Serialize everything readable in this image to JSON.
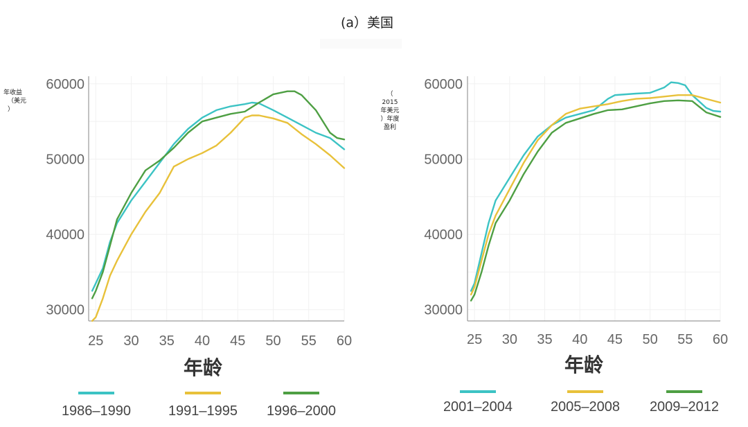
{
  "title": "(a）美国",
  "colors": {
    "cyan": "#3cc3c4",
    "yellow": "#e8c13a",
    "green": "#4e9f43"
  },
  "chart_data": [
    {
      "type": "line",
      "xlabel": "年龄",
      "ylabel_lines": [
        "年收益",
        "（美元",
        "）"
      ],
      "xlim": [
        24,
        60
      ],
      "ylim": [
        28500,
        61000
      ],
      "xticks": [
        25,
        30,
        35,
        40,
        45,
        50,
        55,
        60
      ],
      "yticks": [
        30000,
        40000,
        50000,
        60000
      ],
      "series": [
        {
          "name": "1986–1990",
          "color": "#3cc3c4",
          "x": [
            24.5,
            25,
            26,
            27,
            28,
            30,
            32,
            34,
            36,
            38,
            40,
            42,
            44,
            46,
            47,
            48,
            50,
            52,
            54,
            56,
            58,
            60
          ],
          "y": [
            32500,
            33500,
            35500,
            39000,
            41500,
            44500,
            47000,
            49500,
            52000,
            54000,
            55500,
            56500,
            57000,
            57300,
            57500,
            57400,
            56500,
            55500,
            54500,
            53500,
            52800,
            51300
          ]
        },
        {
          "name": "1991–1995",
          "color": "#e8c13a",
          "x": [
            24.5,
            25,
            26,
            27,
            28,
            30,
            32,
            34,
            36,
            38,
            40,
            42,
            44,
            46,
            47,
            48,
            50,
            52,
            54,
            56,
            58,
            60
          ],
          "y": [
            28500,
            29000,
            31500,
            34500,
            36500,
            40000,
            43000,
            45500,
            49000,
            50000,
            50800,
            51800,
            53500,
            55500,
            55800,
            55800,
            55400,
            54800,
            53300,
            52000,
            50500,
            48800
          ]
        },
        {
          "name": "1996–2000",
          "color": "#4e9f43",
          "x": [
            24.5,
            25,
            26,
            27,
            28,
            30,
            32,
            34,
            36,
            38,
            40,
            42,
            44,
            46,
            48,
            50,
            52,
            53,
            54,
            56,
            58,
            59,
            60
          ],
          "y": [
            31500,
            32500,
            35000,
            38500,
            42000,
            45500,
            48500,
            49800,
            51500,
            53500,
            55000,
            55500,
            56000,
            56300,
            57500,
            58600,
            59000,
            59000,
            58500,
            56500,
            53500,
            52800,
            52600
          ]
        }
      ]
    },
    {
      "type": "line",
      "xlabel": "年龄",
      "ylabel_lines": [
        "（",
        "2015",
        "年美元",
        "）年度",
        "盈利"
      ],
      "xlim": [
        24,
        60
      ],
      "ylim": [
        28500,
        61000
      ],
      "xticks": [
        25,
        30,
        35,
        40,
        45,
        50,
        55,
        60
      ],
      "yticks": [
        30000,
        40000,
        50000,
        60000
      ],
      "series": [
        {
          "name": "2001–2004",
          "color": "#3cc3c4",
          "x": [
            24.5,
            25,
            26,
            27,
            28,
            30,
            32,
            34,
            36,
            38,
            40,
            42,
            44,
            45,
            48,
            50,
            52,
            53,
            54,
            55,
            56,
            58,
            59,
            60
          ],
          "y": [
            32500,
            33500,
            37500,
            41500,
            44500,
            47500,
            50500,
            53000,
            54500,
            55500,
            56000,
            56500,
            58000,
            58500,
            58700,
            58800,
            59500,
            60200,
            60100,
            59800,
            58500,
            56800,
            56400,
            56300
          ]
        },
        {
          "name": "2005–2008",
          "color": "#e8c13a",
          "x": [
            24.5,
            25,
            26,
            27,
            28,
            30,
            32,
            34,
            36,
            38,
            40,
            42,
            44,
            46,
            48,
            50,
            52,
            54,
            56,
            58,
            60
          ],
          "y": [
            32000,
            33000,
            36500,
            40000,
            42500,
            46000,
            49500,
            52500,
            54500,
            56000,
            56700,
            57000,
            57300,
            57700,
            58000,
            58100,
            58300,
            58500,
            58500,
            58000,
            57500
          ]
        },
        {
          "name": "2009–2012",
          "color": "#4e9f43",
          "x": [
            24.5,
            25,
            26,
            27,
            28,
            30,
            32,
            34,
            36,
            38,
            40,
            42,
            44,
            46,
            48,
            50,
            52,
            54,
            56,
            58,
            60
          ],
          "y": [
            31200,
            32000,
            35000,
            38500,
            41500,
            44500,
            48000,
            51000,
            53500,
            54800,
            55400,
            56000,
            56500,
            56600,
            57000,
            57400,
            57700,
            57800,
            57700,
            56200,
            55600
          ]
        }
      ]
    }
  ]
}
